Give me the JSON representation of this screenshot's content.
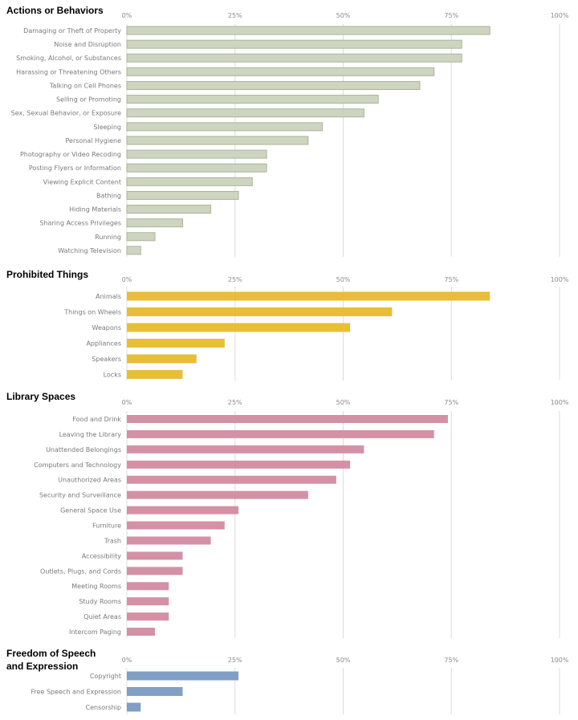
{
  "chart_data": [
    {
      "type": "bar",
      "orientation": "horizontal",
      "title": "Actions or Behaviors",
      "xlim": [
        0,
        100
      ],
      "xticks": [
        "0%",
        "25%",
        "50%",
        "75%",
        "100%"
      ],
      "grid": true,
      "color": "#cdd5c0",
      "categories": [
        "Damaging or Theft of Property",
        "Noise and Disruption",
        "Smoking, Alcohol, or Substances",
        "Harassing or Threatening Others",
        "Talking on Cell Phones",
        "Selling or Promoting",
        "Sex, Sexual Behavior, or Exposure",
        "Sleeping",
        "Personal Hygiene",
        "Photography or Video Recoding",
        "Posting Flyers or Information",
        "Viewing Explicit Content",
        "Bathing",
        "Hiding Materials",
        "Sharing Access Privileges",
        "Running",
        "Watching Television"
      ],
      "values": [
        83.9,
        77.4,
        77.4,
        71.0,
        67.7,
        58.1,
        54.8,
        45.2,
        41.9,
        32.3,
        32.3,
        29.0,
        25.8,
        19.4,
        12.9,
        6.5,
        3.2
      ]
    },
    {
      "type": "bar",
      "orientation": "horizontal",
      "title": "Prohibited Things",
      "xlim": [
        0,
        100
      ],
      "xticks": [
        "0%",
        "25%",
        "50%",
        "75%",
        "100%"
      ],
      "grid": true,
      "color": "#e8bd38",
      "categories": [
        "Animals",
        "Things on Wheels",
        "Weapons",
        "Appliances",
        "Speakers",
        "Locks"
      ],
      "values": [
        83.9,
        61.3,
        51.6,
        22.6,
        16.1,
        12.9
      ]
    },
    {
      "type": "bar",
      "orientation": "horizontal",
      "title": "Library Spaces",
      "xlim": [
        0,
        100
      ],
      "xticks": [
        "0%",
        "25%",
        "50%",
        "75%",
        "100%"
      ],
      "grid": true,
      "color": "#d491a6",
      "categories": [
        "Food and Drink",
        "Leaving the Library",
        "Unattended Belongings",
        "Computers and Technology",
        "Unauthorized Areas",
        "Security and Surveillance",
        "General Space Use",
        "Furniture",
        "Trash",
        "Accessibility",
        "Outlets, Plugs, and Cords",
        "Meeting Rooms",
        "Study Rooms",
        "Quiet Areas",
        "Intercom Paging"
      ],
      "values": [
        74.2,
        71.0,
        54.8,
        51.6,
        48.4,
        41.9,
        25.8,
        22.6,
        19.4,
        12.9,
        12.9,
        9.7,
        9.7,
        9.7,
        6.5
      ]
    },
    {
      "type": "bar",
      "orientation": "horizontal",
      "title": [
        "Freedom of Speech",
        "and Expression"
      ],
      "xlim": [
        0,
        100
      ],
      "xticks": [
        "0%",
        "25%",
        "50%",
        "75%",
        "100%"
      ],
      "grid": true,
      "color": "#7f9fc5",
      "categories": [
        "Copyright",
        "Free Speech and Expression",
        "Censorship"
      ],
      "values": [
        25.8,
        12.9,
        3.2
      ]
    }
  ]
}
